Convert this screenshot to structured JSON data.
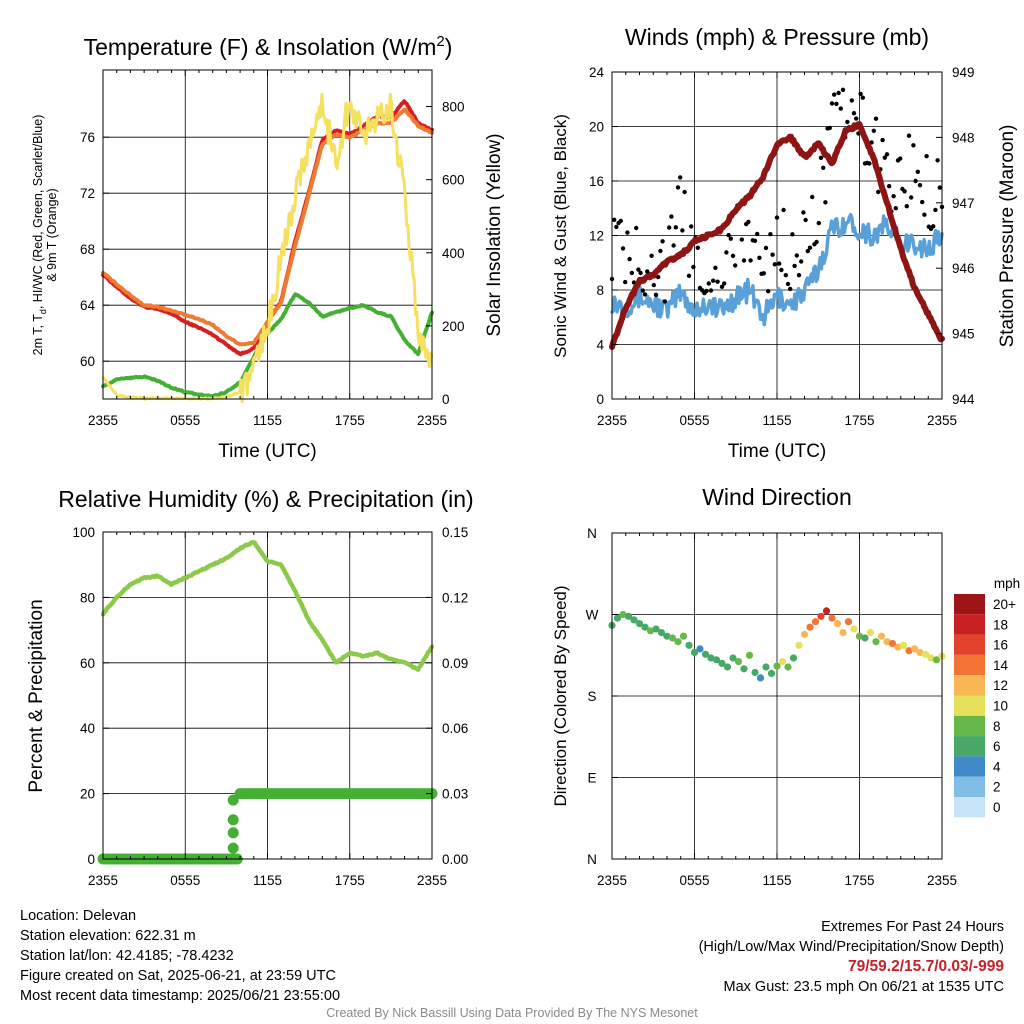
{
  "footer": {
    "location": "Location: Delevan",
    "elevation": "Station elevation: 622.31 m",
    "latlon": "Station lat/lon: 42.4185; -78.4232",
    "created": "Figure created on Sat, 2025-06-21, at 23:59 UTC",
    "recent": "Most recent data timestamp: 2025/06/21 23:55:00",
    "extremes_title": "Extremes For Past 24 Hours",
    "extremes_legend": "(High/Low/Max Wind/Precipitation/Snow Depth)",
    "extremes_values": "79/59.2/15.7/0.03/-999",
    "max_gust": "Max Gust: 23.5 mph On 06/21 at 1535 UTC",
    "credit": "Created By Nick Bassill Using Data Provided By The NYS Mesonet"
  },
  "colors": {
    "temp": "#d42020",
    "windchill": "#c62026",
    "heat_index": "#c62026",
    "dewpoint": "#44b033",
    "t9m": "#f07a30",
    "insolation": "#f5e060",
    "wind": "#5aa0d8",
    "gust": "#000000",
    "pressure": "#8f1515",
    "rh": "#8cc84a",
    "precip": "#44b033"
  },
  "chart_data": [
    {
      "type": "line",
      "title": "Temperature (F) & Insolation (W/m²)",
      "xlabel": "Time (UTC)",
      "ylabel": "2m T, Td, HI/WC (Red, Green, Scarlet/Blue) & 9m T (Orange)",
      "ylabel_line1": "2m T, T",
      "ylabel_sub": "d",
      "ylabel_line1_rest": ", HI/WC (Red, Green, Scarlet/Blue)",
      "ylabel_line2": "& 9m T (Orange)",
      "y2label": "Solar Insolation (Yellow)",
      "xticks": [
        "2355",
        "0555",
        "1155",
        "1755",
        "2355"
      ],
      "yticks": [
        60,
        64,
        68,
        72,
        76
      ],
      "y2ticks": [
        0,
        200,
        400,
        600,
        800
      ],
      "ylim": [
        57.3,
        80.8
      ],
      "y2lim": [
        0,
        900
      ],
      "x": [
        0,
        1,
        2,
        3,
        4,
        5,
        6,
        7,
        8,
        9,
        10,
        11,
        12,
        13,
        14,
        15,
        16,
        17,
        18,
        19,
        20,
        21,
        22,
        23,
        24
      ],
      "series": [
        {
          "name": "2m T",
          "axis": "left",
          "color": "#d42020",
          "values": [
            66.2,
            65.3,
            64.5,
            63.9,
            63.7,
            63.4,
            62.8,
            62.4,
            61.9,
            61.2,
            60.5,
            60.9,
            62.8,
            64.3,
            68.5,
            72.0,
            75.8,
            76.5,
            76.2,
            76.8,
            77.5,
            77.4,
            78.6,
            77.0,
            76.5
          ]
        },
        {
          "name": "9m T",
          "axis": "left",
          "color": "#f07a30",
          "values": [
            66.3,
            65.5,
            64.7,
            64.0,
            63.9,
            63.6,
            63.3,
            63.0,
            62.6,
            61.8,
            61.2,
            61.3,
            62.8,
            64.2,
            68.2,
            71.8,
            75.5,
            76.2,
            76.0,
            76.5,
            77.0,
            77.0,
            78.0,
            76.8,
            76.3
          ]
        },
        {
          "name": "Td",
          "axis": "left",
          "color": "#44b033",
          "values": [
            58.2,
            58.7,
            58.8,
            58.9,
            58.6,
            58.1,
            57.8,
            57.6,
            57.5,
            57.8,
            58.5,
            60.3,
            62.0,
            63.0,
            64.8,
            64.2,
            63.2,
            63.5,
            63.8,
            64.0,
            63.5,
            63.2,
            61.5,
            60.5,
            63.5
          ]
        },
        {
          "name": "Solar Insolation",
          "axis": "right",
          "color": "#f5e060",
          "values": [
            60,
            10,
            5,
            2,
            2,
            2,
            2,
            2,
            2,
            5,
            20,
            80,
            200,
            380,
            560,
            700,
            800,
            650,
            820,
            720,
            780,
            800,
            560,
            180,
            100
          ]
        }
      ]
    },
    {
      "type": "line",
      "title": "Winds (mph) & Pressure (mb)",
      "xlabel": "Time (UTC)",
      "ylabel": "Sonic Wind & Gust (Blue, Black)",
      "y2label": "Station Pressure (Maroon)",
      "xticks": [
        "2355",
        "0555",
        "1155",
        "1755",
        "2355"
      ],
      "yticks": [
        0,
        4,
        8,
        12,
        16,
        20,
        24
      ],
      "y2ticks": [
        944,
        945,
        946,
        947,
        948,
        949
      ],
      "ylim": [
        0,
        24
      ],
      "y2lim": [
        944,
        949
      ],
      "x": [
        0,
        1,
        2,
        3,
        4,
        5,
        6,
        7,
        8,
        9,
        10,
        11,
        12,
        13,
        14,
        15,
        16,
        17,
        18,
        19,
        20,
        21,
        22,
        23,
        24
      ],
      "series": [
        {
          "name": "Sonic Wind",
          "axis": "left",
          "color": "#5aa0d8",
          "values": [
            7.2,
            6.8,
            7.5,
            7.0,
            6.5,
            7.8,
            6.5,
            7.0,
            6.5,
            7.5,
            8.0,
            6.0,
            7.5,
            7.0,
            7.8,
            9.5,
            12.5,
            13.0,
            12.5,
            12.0,
            12.8,
            11.0,
            11.5,
            11.0,
            12.0
          ]
        },
        {
          "name": "Gust",
          "axis": "left",
          "color": "#000000",
          "values": [
            11.5,
            10.0,
            10.5,
            10.2,
            9.5,
            14.0,
            10.0,
            10.0,
            9.5,
            11.5,
            12.5,
            9.0,
            12.0,
            10.5,
            11.0,
            14.5,
            19.5,
            21.0,
            20.0,
            18.5,
            16.5,
            15.5,
            17.5,
            15.0,
            16.0
          ]
        },
        {
          "name": "Station Pressure",
          "axis": "right",
          "color": "#8f1515",
          "values": [
            944.8,
            945.4,
            945.8,
            945.9,
            946.1,
            946.2,
            946.4,
            946.5,
            946.6,
            946.9,
            947.1,
            947.4,
            947.9,
            948.0,
            947.7,
            947.9,
            947.6,
            948.1,
            948.2,
            947.7,
            947.0,
            946.3,
            945.7,
            945.3,
            944.9
          ]
        }
      ]
    },
    {
      "type": "line",
      "title": "Relative Humidity (%) & Precipitation (in)",
      "xlabel": "",
      "ylabel": "Percent & Precipitation",
      "xticks": [
        "2355",
        "0555",
        "1155",
        "1755",
        "2355"
      ],
      "yticks": [
        0,
        20,
        40,
        60,
        80,
        100
      ],
      "y2ticks": [
        "0.00",
        "0.03",
        "0.06",
        "0.09",
        "0.12",
        "0.15"
      ],
      "ylim": [
        0,
        100
      ],
      "y2lim": [
        0,
        0.15
      ],
      "x": [
        0,
        1,
        2,
        3,
        4,
        5,
        6,
        7,
        8,
        9,
        10,
        11,
        12,
        13,
        14,
        15,
        16,
        17,
        18,
        19,
        20,
        21,
        22,
        23,
        24
      ],
      "series": [
        {
          "name": "Relative Humidity",
          "axis": "left",
          "color": "#8cc84a",
          "values": [
            75,
            80,
            84,
            86,
            86.5,
            84,
            86,
            88,
            90,
            92,
            95,
            97,
            91,
            90,
            82,
            73,
            67,
            60,
            63,
            62,
            63,
            61,
            60,
            58,
            65
          ]
        },
        {
          "name": "Precipitation",
          "axis": "right",
          "color": "#44b033",
          "values": [
            0,
            0,
            0,
            0,
            0,
            0,
            0,
            0,
            0,
            0,
            0.03,
            0.03,
            0.03,
            0.03,
            0.03,
            0.03,
            0.03,
            0.03,
            0.03,
            0.03,
            0.03,
            0.03,
            0.03,
            0.03,
            0.03
          ]
        }
      ]
    },
    {
      "type": "scatter",
      "title": "Wind Direction",
      "xlabel": "",
      "ylabel": "Direction (Colored By Speed)",
      "xticks": [
        "2355",
        "0555",
        "1155",
        "1755",
        "2355"
      ],
      "yticks": [
        "N",
        "E",
        "S",
        "W",
        "N"
      ],
      "ylim": [
        0,
        360
      ],
      "colorbar": {
        "title": "mph",
        "labels": [
          "0",
          "2",
          "4",
          "6",
          "8",
          "10",
          "12",
          "14",
          "16",
          "18",
          "20+"
        ],
        "colors": [
          "#c6e4f5",
          "#7fbde5",
          "#3f8bc8",
          "#47a867",
          "#67b84a",
          "#e6e05a",
          "#f8b655",
          "#f37535",
          "#e3432a",
          "#c81f22",
          "#9e1518"
        ]
      },
      "points": [
        {
          "x": 0.0,
          "dir": 258,
          "speed": 7
        },
        {
          "x": 0.4,
          "dir": 266,
          "speed": 7
        },
        {
          "x": 0.8,
          "dir": 270,
          "speed": 8
        },
        {
          "x": 1.2,
          "dir": 268,
          "speed": 7
        },
        {
          "x": 1.6,
          "dir": 264,
          "speed": 7
        },
        {
          "x": 2.0,
          "dir": 260,
          "speed": 6
        },
        {
          "x": 2.4,
          "dir": 256,
          "speed": 7
        },
        {
          "x": 2.8,
          "dir": 252,
          "speed": 8
        },
        {
          "x": 3.2,
          "dir": 254,
          "speed": 7
        },
        {
          "x": 3.6,
          "dir": 250,
          "speed": 6
        },
        {
          "x": 4.0,
          "dir": 246,
          "speed": 7
        },
        {
          "x": 4.4,
          "dir": 244,
          "speed": 8
        },
        {
          "x": 4.8,
          "dir": 240,
          "speed": 9
        },
        {
          "x": 5.2,
          "dir": 246,
          "speed": 9
        },
        {
          "x": 5.6,
          "dir": 236,
          "speed": 6
        },
        {
          "x": 6.0,
          "dir": 228,
          "speed": 7
        },
        {
          "x": 6.4,
          "dir": 232,
          "speed": 4
        },
        {
          "x": 6.8,
          "dir": 226,
          "speed": 6
        },
        {
          "x": 7.2,
          "dir": 222,
          "speed": 7
        },
        {
          "x": 7.6,
          "dir": 220,
          "speed": 6
        },
        {
          "x": 8.0,
          "dir": 216,
          "speed": 7
        },
        {
          "x": 8.4,
          "dir": 212,
          "speed": 6
        },
        {
          "x": 8.8,
          "dir": 222,
          "speed": 7
        },
        {
          "x": 9.2,
          "dir": 218,
          "speed": 9
        },
        {
          "x": 9.6,
          "dir": 210,
          "speed": 6
        },
        {
          "x": 10.0,
          "dir": 225,
          "speed": 8
        },
        {
          "x": 10.4,
          "dir": 206,
          "speed": 6
        },
        {
          "x": 10.8,
          "dir": 200,
          "speed": 5
        },
        {
          "x": 11.2,
          "dir": 212,
          "speed": 7
        },
        {
          "x": 11.6,
          "dir": 205,
          "speed": 6
        },
        {
          "x": 12.0,
          "dir": 213,
          "speed": 9
        },
        {
          "x": 12.4,
          "dir": 218,
          "speed": 10
        },
        {
          "x": 12.8,
          "dir": 212,
          "speed": 8
        },
        {
          "x": 13.2,
          "dir": 222,
          "speed": 7
        },
        {
          "x": 13.6,
          "dir": 236,
          "speed": 10
        },
        {
          "x": 14.0,
          "dir": 248,
          "speed": 12
        },
        {
          "x": 14.4,
          "dir": 256,
          "speed": 14
        },
        {
          "x": 14.8,
          "dir": 262,
          "speed": 15
        },
        {
          "x": 15.2,
          "dir": 268,
          "speed": 16
        },
        {
          "x": 15.6,
          "dir": 274,
          "speed": 18
        },
        {
          "x": 16.0,
          "dir": 266,
          "speed": 15
        },
        {
          "x": 16.4,
          "dir": 260,
          "speed": 13
        },
        {
          "x": 16.8,
          "dir": 250,
          "speed": 12
        },
        {
          "x": 17.2,
          "dir": 262,
          "speed": 14
        },
        {
          "x": 17.6,
          "dir": 254,
          "speed": 11
        },
        {
          "x": 18.0,
          "dir": 246,
          "speed": 9
        },
        {
          "x": 18.4,
          "dir": 244,
          "speed": 7
        },
        {
          "x": 18.8,
          "dir": 250,
          "speed": 10
        },
        {
          "x": 19.2,
          "dir": 240,
          "speed": 8
        },
        {
          "x": 19.6,
          "dir": 246,
          "speed": 13
        },
        {
          "x": 20.0,
          "dir": 240,
          "speed": 12
        },
        {
          "x": 20.4,
          "dir": 238,
          "speed": 14
        },
        {
          "x": 20.8,
          "dir": 234,
          "speed": 12
        },
        {
          "x": 21.2,
          "dir": 236,
          "speed": 11
        },
        {
          "x": 21.6,
          "dir": 230,
          "speed": 14
        },
        {
          "x": 22.0,
          "dir": 232,
          "speed": 13
        },
        {
          "x": 22.4,
          "dir": 228,
          "speed": 12
        },
        {
          "x": 22.8,
          "dir": 226,
          "speed": 11
        },
        {
          "x": 23.2,
          "dir": 222,
          "speed": 10
        },
        {
          "x": 23.6,
          "dir": 220,
          "speed": 9
        },
        {
          "x": 24.0,
          "dir": 224,
          "speed": 11
        }
      ]
    }
  ]
}
